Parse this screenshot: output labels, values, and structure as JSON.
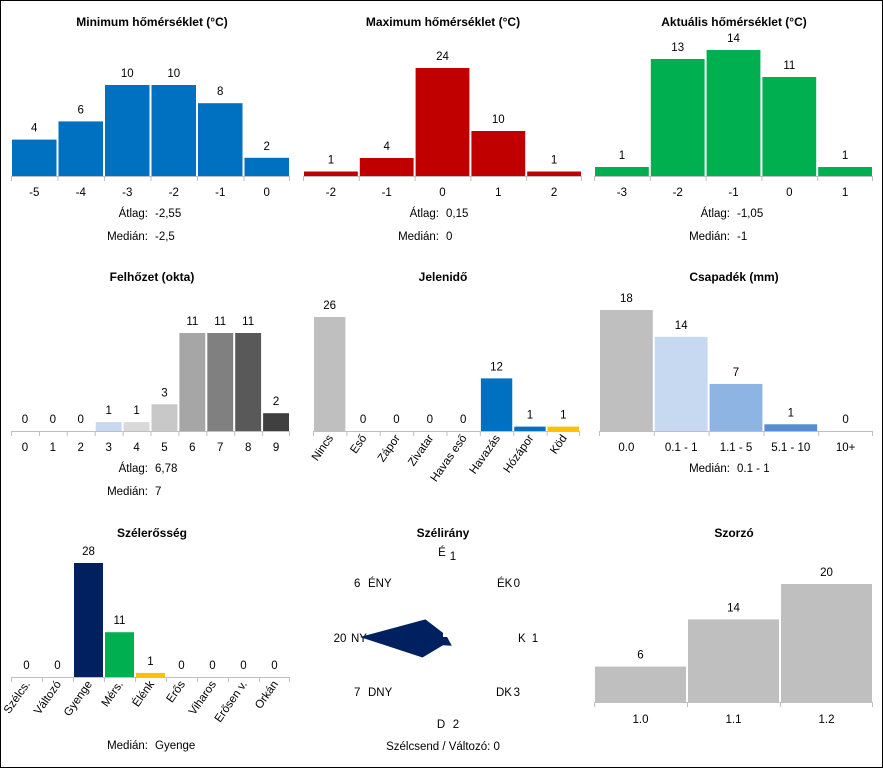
{
  "colors": {
    "blue": "#0070c0",
    "red": "#c00000",
    "green": "#00b050",
    "gray": "#bfbfbf",
    "navy": "#002060",
    "yellow": "#ffc000",
    "lightblue": "#c6d9f1",
    "midblue": "#8db4e2",
    "steelblue": "#558ed5"
  },
  "chart_data": [
    {
      "id": "min",
      "type": "bar",
      "title": "Minimum hőmérséklet (°C)",
      "categories": [
        "-5",
        "-4",
        "-3",
        "-2",
        "-1",
        "0"
      ],
      "values": [
        4,
        6,
        10,
        10,
        8,
        2
      ],
      "colors": [
        "blue",
        "blue",
        "blue",
        "blue",
        "blue",
        "blue"
      ],
      "stats": [
        {
          "label": "Átlag:",
          "value": "-2,55"
        },
        {
          "label": "Medián:",
          "value": "-2,5"
        }
      ]
    },
    {
      "id": "max",
      "type": "bar",
      "title": "Maximum hőmérséklet (°C)",
      "categories": [
        "-2",
        "-1",
        "0",
        "1",
        "2"
      ],
      "values": [
        1,
        4,
        24,
        10,
        1
      ],
      "colors": [
        "red",
        "red",
        "red",
        "red",
        "red"
      ],
      "stats": [
        {
          "label": "Átlag:",
          "value": "0,15"
        },
        {
          "label": "Medián:",
          "value": "0"
        }
      ]
    },
    {
      "id": "act",
      "type": "bar",
      "title": "Aktuális hőmérséklet (°C)",
      "categories": [
        "-3",
        "-2",
        "-1",
        "0",
        "1"
      ],
      "values": [
        1,
        13,
        14,
        11,
        1
      ],
      "colors": [
        "green",
        "green",
        "green",
        "green",
        "green"
      ],
      "stats": [
        {
          "label": "Átlag:",
          "value": "-1,05"
        },
        {
          "label": "Medián:",
          "value": "-1"
        }
      ]
    },
    {
      "id": "cloud",
      "type": "bar",
      "title": "Felhőzet (okta)",
      "categories": [
        "0",
        "1",
        "2",
        "3",
        "4",
        "5",
        "6",
        "7",
        "8",
        "9"
      ],
      "values": [
        0,
        0,
        0,
        1,
        1,
        3,
        11,
        11,
        11,
        2
      ],
      "colors": [
        "#ffffff",
        "#ffffff",
        "#ffffff",
        "#c6d9f1",
        "#d9d9d9",
        "#c8c8c8",
        "#a6a6a6",
        "#808080",
        "#595959",
        "#404040"
      ],
      "stats": [
        {
          "label": "Átlag:",
          "value": "6,78"
        },
        {
          "label": "Medián:",
          "value": "7"
        }
      ]
    },
    {
      "id": "wx",
      "type": "bar",
      "title": "Jelenidő",
      "categories": [
        "Nincs",
        "Eső",
        "Zápor",
        "Zivatar",
        "Havas eső",
        "Havazás",
        "Hózápor",
        "Köd"
      ],
      "values": [
        26,
        0,
        0,
        0,
        0,
        12,
        1,
        1
      ],
      "colors": [
        "gray",
        "gray",
        "gray",
        "gray",
        "gray",
        "blue",
        "blue",
        "yellow"
      ],
      "rotated": true,
      "stats": []
    },
    {
      "id": "precip",
      "type": "bar",
      "title": "Csapadék (mm)",
      "categories": [
        "0.0",
        "0.1 - 1",
        "1.1 - 5",
        "5.1 - 10",
        "10+"
      ],
      "values": [
        18,
        14,
        7,
        1,
        0
      ],
      "colors": [
        "gray",
        "lightblue",
        "midblue",
        "steelblue",
        "steelblue"
      ],
      "stats": [
        {
          "label": "Medián:",
          "value": "0.1 - 1"
        }
      ]
    },
    {
      "id": "wind",
      "type": "bar",
      "title": "Szélerősség",
      "categories": [
        "Szélcs.",
        "Változó",
        "Gyenge",
        "Mérs.",
        "Élénk",
        "Erős",
        "Viharos",
        "Erősen v.",
        "Orkán"
      ],
      "values": [
        0,
        0,
        28,
        11,
        1,
        0,
        0,
        0,
        0
      ],
      "colors": [
        "gray",
        "gray",
        "navy",
        "green",
        "yellow",
        "gray",
        "gray",
        "gray",
        "gray"
      ],
      "rotated": true,
      "stats": [
        {
          "label": "Medián:",
          "value": "Gyenge"
        }
      ]
    },
    {
      "id": "dir",
      "type": "radar",
      "title": "Szélirány",
      "directions": [
        {
          "label": "É",
          "value": 1
        },
        {
          "label": "ÉK",
          "value": 0
        },
        {
          "label": "K",
          "value": 1
        },
        {
          "label": "DK",
          "value": 3
        },
        {
          "label": "D",
          "value": 2
        },
        {
          "label": "DNY",
          "value": 7
        },
        {
          "label": "NY",
          "value": 20
        },
        {
          "label": "ÉNY",
          "value": 6
        }
      ],
      "footer": "Szélcsend / Változó: 0"
    },
    {
      "id": "mult",
      "type": "bar",
      "title": "Szorzó",
      "categories": [
        "1.0",
        "1.1",
        "1.2"
      ],
      "values": [
        6,
        14,
        20
      ],
      "colors": [
        "gray",
        "gray",
        "gray"
      ],
      "stats": []
    }
  ]
}
